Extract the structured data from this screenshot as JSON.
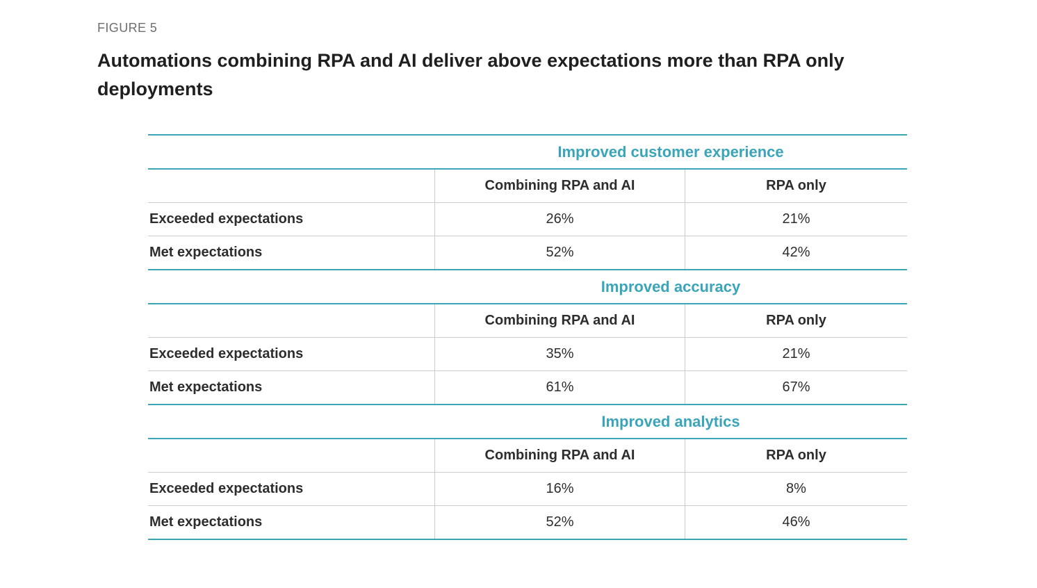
{
  "figure_label": "FIGURE 5",
  "title": "Automations combining RPA and AI deliver above expectations more than RPA only deployments",
  "colors": {
    "teal": "#3AA5B9",
    "grid_line": "#cccccc",
    "title_color": "#1f1f1f",
    "text_color": "#2d2d2d",
    "figure_label_color": "#6e6e6e"
  },
  "chart_data": {
    "type": "table",
    "figure_label": "FIGURE 5",
    "title": "Automations combining RPA and AI deliver above expectations more than RPA only deployments",
    "sections": [
      {
        "title": "Improved customer experience",
        "columns": [
          "Combining RPA and AI",
          "RPA only"
        ],
        "rows": [
          {
            "label": "Exceeded expectations",
            "values": [
              "26%",
              "21%"
            ]
          },
          {
            "label": "Met expectations",
            "values": [
              "52%",
              "42%"
            ]
          }
        ]
      },
      {
        "title": "Improved accuracy",
        "columns": [
          "Combining RPA and AI",
          "RPA only"
        ],
        "rows": [
          {
            "label": "Exceeded expectations",
            "values": [
              "35%",
              "21%"
            ]
          },
          {
            "label": "Met expectations",
            "values": [
              "61%",
              "67%"
            ]
          }
        ]
      },
      {
        "title": "Improved analytics",
        "columns": [
          "Combining RPA and AI",
          "RPA only"
        ],
        "rows": [
          {
            "label": "Exceeded expectations",
            "values": [
              "16%",
              "8%"
            ]
          },
          {
            "label": "Met expectations",
            "values": [
              "52%",
              "46%"
            ]
          }
        ]
      }
    ]
  }
}
